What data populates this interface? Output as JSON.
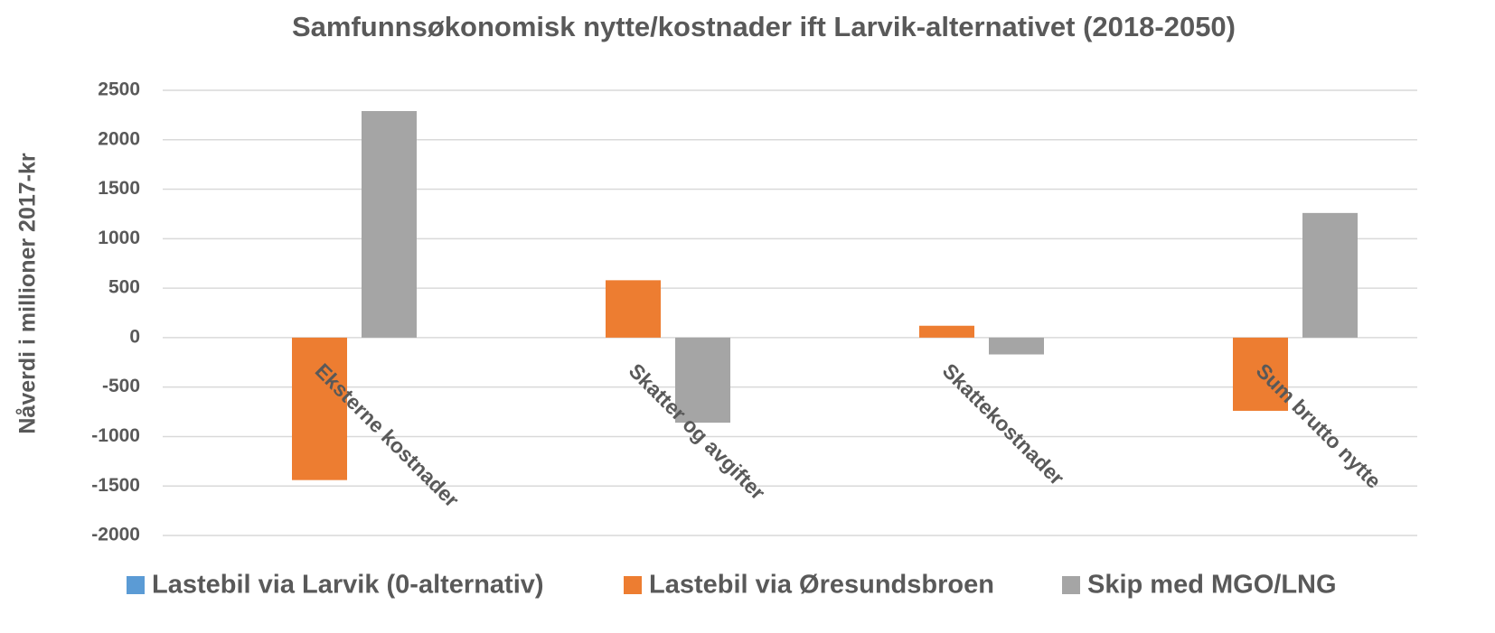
{
  "chart_data": {
    "type": "bar",
    "title": "Samfunnsøkonomisk nytte/kostnader ift Larvik-alternativet (2018-2050)",
    "y_label": "Nåverdi i millioner 2017-kr",
    "categories": [
      "Eksterne kostnader",
      "Skatter og avgifter",
      "Skattekostnader",
      "Sum brutto nytte"
    ],
    "series": [
      {
        "name": "Lastebil via Larvik (0-alternativ)",
        "color": "#5b9bd5",
        "values": [
          0,
          0,
          0,
          0
        ]
      },
      {
        "name": "Lastebil via Øresundsbroen",
        "color": "#ed7d31",
        "values": [
          -1440,
          580,
          120,
          -740
        ]
      },
      {
        "name": "Skip med MGO/LNG",
        "color": "#a5a5a5",
        "values": [
          2290,
          -860,
          -170,
          1260
        ]
      }
    ],
    "ylim": [
      -2000,
      2500
    ],
    "yticks": [
      -2000,
      -1500,
      -1000,
      -500,
      0,
      500,
      1000,
      1500,
      2000,
      2500
    ],
    "grid": true,
    "legend": "bottom"
  }
}
